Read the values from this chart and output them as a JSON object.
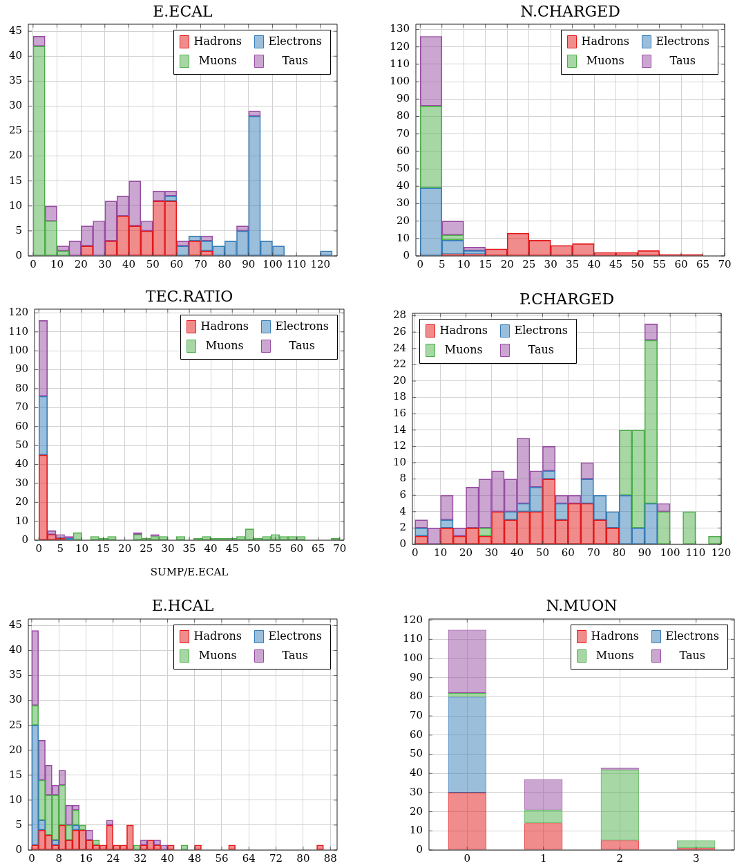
{
  "chart_data": [
    {
      "type": "bar",
      "title": "E.ECAL",
      "stacked": true,
      "grid": true,
      "legend": "top right",
      "x": [
        2.5,
        7.5,
        12.5,
        17.5,
        22.5,
        27.5,
        32.5,
        37.5,
        42.5,
        47.5,
        52.5,
        57.5,
        62.5,
        67.5,
        72.5,
        77.5,
        82.5,
        87.5,
        92.5,
        97.5,
        102.5,
        107.5,
        112.5,
        117.5,
        122.5
      ],
      "series": [
        {
          "name": "Hadrons",
          "color": "#e41a1c",
          "values": [
            null,
            null,
            null,
            null,
            2,
            null,
            3,
            8,
            6,
            5,
            11,
            11,
            null,
            3,
            1,
            null,
            null,
            null,
            null,
            null,
            null,
            null,
            null,
            null,
            null
          ]
        },
        {
          "name": "Electrons",
          "color": "#377eb8",
          "values": [
            null,
            null,
            null,
            null,
            null,
            null,
            null,
            null,
            null,
            null,
            null,
            1,
            2,
            1,
            2,
            2,
            3,
            5,
            28,
            3,
            2,
            null,
            null,
            null,
            1
          ]
        },
        {
          "name": "Muons",
          "color": "#4daf4a",
          "values": [
            42,
            7,
            1,
            null,
            null,
            null,
            null,
            null,
            null,
            null,
            null,
            null,
            null,
            null,
            null,
            null,
            null,
            null,
            null,
            null,
            null,
            null,
            null,
            null,
            null
          ]
        },
        {
          "name": "Taus",
          "color": "#984ea3",
          "values": [
            2,
            3,
            1,
            3,
            4,
            7,
            8,
            4,
            9,
            2,
            2,
            1,
            1,
            null,
            1,
            null,
            null,
            1,
            1,
            null,
            null,
            null,
            null,
            null,
            null
          ]
        }
      ],
      "xlim": [
        -2,
        127
      ],
      "xticks": [
        0,
        10,
        20,
        30,
        40,
        50,
        60,
        70,
        80,
        90,
        100,
        110,
        120
      ],
      "ylim": [
        0,
        46.4
      ],
      "yticks": [
        0,
        5,
        10,
        15,
        20,
        25,
        30,
        35,
        40,
        45
      ]
    },
    {
      "type": "bar",
      "title": "N.CHARGED",
      "stacked": true,
      "grid": true,
      "legend": "top right",
      "x": [
        2.5,
        7.5,
        12.5,
        17.5,
        22.5,
        27.5,
        32.5,
        37.5,
        42.5,
        47.5,
        52.5,
        57.5,
        62.5
      ],
      "series": [
        {
          "name": "Hadrons",
          "color": "#e41a1c",
          "values": [
            null,
            1,
            1,
            4,
            13,
            9,
            6,
            7,
            2,
            2,
            3,
            1,
            1
          ]
        },
        {
          "name": "Electrons",
          "color": "#377eb8",
          "values": [
            39,
            8,
            2,
            null,
            null,
            null,
            null,
            null,
            null,
            null,
            null,
            null,
            null
          ]
        },
        {
          "name": "Muons",
          "color": "#4daf4a",
          "values": [
            47,
            3,
            null,
            null,
            null,
            null,
            null,
            null,
            null,
            null,
            null,
            null,
            null
          ]
        },
        {
          "name": "Taus",
          "color": "#984ea3",
          "values": [
            40,
            8,
            2,
            null,
            null,
            null,
            null,
            null,
            null,
            null,
            null,
            null,
            null
          ]
        }
      ],
      "xlim": [
        -1,
        70
      ],
      "xticks": [
        0,
        5,
        10,
        15,
        20,
        25,
        30,
        35,
        40,
        45,
        50,
        55,
        60,
        65,
        70
      ],
      "ylim": [
        0,
        133
      ],
      "yticks": [
        0,
        10,
        20,
        30,
        40,
        50,
        60,
        70,
        80,
        90,
        100,
        110,
        120,
        130
      ]
    },
    {
      "type": "bar",
      "title": "TEC.RATIO",
      "xlabel": "SUMP/E.ECAL",
      "stacked": true,
      "grid": true,
      "legend": "top right",
      "x": [
        1,
        3,
        5,
        7,
        9,
        11,
        13,
        15,
        17,
        19,
        21,
        23,
        25,
        27,
        29,
        31,
        33,
        35,
        37,
        39,
        41,
        43,
        45,
        47,
        49,
        51,
        53,
        55,
        57,
        59,
        61,
        63,
        65,
        67,
        69
      ],
      "series": [
        {
          "name": "Hadrons",
          "color": "#e41a1c",
          "values": [
            45,
            3,
            1,
            null,
            null,
            null,
            null,
            null,
            null,
            null,
            null,
            null,
            null,
            null,
            null,
            null,
            null,
            null,
            null,
            null,
            null,
            null,
            null,
            null,
            null,
            null,
            null,
            null,
            null,
            null,
            null,
            null,
            null,
            null,
            null
          ]
        },
        {
          "name": "Electrons",
          "color": "#377eb8",
          "values": [
            31,
            null,
            null,
            1,
            null,
            null,
            null,
            null,
            null,
            null,
            null,
            null,
            null,
            null,
            null,
            null,
            null,
            null,
            null,
            null,
            null,
            null,
            null,
            null,
            null,
            null,
            null,
            null,
            null,
            null,
            null,
            null,
            null,
            null,
            null
          ]
        },
        {
          "name": "Muons",
          "color": "#4daf4a",
          "values": [
            null,
            null,
            null,
            null,
            4,
            null,
            2,
            1,
            2,
            null,
            null,
            3,
            1,
            2,
            2,
            null,
            2,
            null,
            1,
            2,
            1,
            1,
            1,
            2,
            6,
            1,
            2,
            3,
            2,
            2,
            2,
            null,
            null,
            null,
            1
          ]
        },
        {
          "name": "Taus",
          "color": "#984ea3",
          "values": [
            40,
            2,
            2,
            1,
            null,
            null,
            null,
            null,
            null,
            null,
            null,
            1,
            null,
            1,
            null,
            null,
            null,
            null,
            null,
            null,
            null,
            null,
            null,
            null,
            null,
            null,
            null,
            null,
            null,
            null,
            null,
            null,
            null,
            null,
            null
          ]
        }
      ],
      "xlim": [
        -1,
        71
      ],
      "xticks": [
        0,
        5,
        10,
        15,
        20,
        25,
        30,
        35,
        40,
        45,
        50,
        55,
        60,
        65,
        70
      ],
      "ylim": [
        0,
        122
      ],
      "yticks": [
        0,
        10,
        20,
        30,
        40,
        50,
        60,
        70,
        80,
        90,
        100,
        110,
        120
      ]
    },
    {
      "type": "bar",
      "title": "P.CHARGED",
      "stacked": true,
      "grid": true,
      "legend": "top left",
      "x": [
        2.5,
        7.5,
        12.5,
        17.5,
        22.5,
        27.5,
        32.5,
        37.5,
        42.5,
        47.5,
        52.5,
        57.5,
        62.5,
        67.5,
        72.5,
        77.5,
        82.5,
        87.5,
        92.5,
        97.5,
        102.5,
        107.5,
        112.5,
        117.5
      ],
      "series": [
        {
          "name": "Hadrons",
          "color": "#e41a1c",
          "values": [
            1,
            null,
            2,
            1,
            2,
            1,
            4,
            3,
            4,
            4,
            8,
            3,
            5,
            5,
            3,
            2,
            null,
            null,
            null,
            null,
            null,
            null,
            null,
            null
          ]
        },
        {
          "name": "Electrons",
          "color": "#377eb8",
          "values": [
            1,
            null,
            1,
            null,
            null,
            null,
            null,
            1,
            1,
            3,
            1,
            2,
            null,
            3,
            3,
            2,
            6,
            2,
            5,
            null,
            null,
            null,
            null,
            null
          ]
        },
        {
          "name": "Muons",
          "color": "#4daf4a",
          "values": [
            null,
            null,
            null,
            null,
            null,
            1,
            null,
            null,
            null,
            null,
            null,
            null,
            null,
            null,
            null,
            null,
            8,
            12,
            20,
            4,
            null,
            4,
            null,
            1
          ]
        },
        {
          "name": "Taus",
          "color": "#984ea3",
          "values": [
            1,
            2,
            3,
            1,
            5,
            6,
            5,
            4,
            8,
            2,
            3,
            1,
            1,
            2,
            null,
            null,
            null,
            null,
            2,
            1,
            null,
            null,
            null,
            null
          ]
        }
      ],
      "xlim": [
        -1,
        120
      ],
      "xticks": [
        0,
        10,
        20,
        30,
        40,
        50,
        60,
        70,
        80,
        90,
        100,
        110,
        120
      ],
      "ylim": [
        0,
        28.3
      ],
      "yticks": [
        0,
        2,
        4,
        6,
        8,
        10,
        12,
        14,
        16,
        18,
        20,
        22,
        24,
        26,
        28
      ]
    },
    {
      "type": "bar",
      "title": "E.HCAL",
      "stacked": true,
      "grid": true,
      "legend": "top right",
      "x": [
        1,
        3,
        5,
        7,
        9,
        11,
        13,
        15,
        17,
        19,
        21,
        23,
        25,
        27,
        29,
        31,
        33,
        35,
        37,
        39,
        41,
        43,
        45,
        47,
        49,
        51,
        53,
        55,
        57,
        59,
        61,
        63,
        65,
        67,
        69,
        71,
        73,
        75,
        77,
        79,
        81,
        83,
        85
      ],
      "series": [
        {
          "name": "Hadrons",
          "color": "#e41a1c",
          "values": [
            1,
            4,
            3,
            1,
            5,
            2,
            4,
            4,
            2,
            1,
            1,
            5,
            1,
            1,
            5,
            null,
            1,
            2,
            1,
            null,
            1,
            null,
            null,
            null,
            1,
            null,
            null,
            null,
            null,
            1,
            null,
            null,
            null,
            null,
            null,
            null,
            null,
            null,
            null,
            null,
            null,
            null,
            1
          ]
        },
        {
          "name": "Electrons",
          "color": "#377eb8",
          "values": [
            24,
            2,
            null,
            1,
            null,
            null,
            1,
            null,
            null,
            null,
            null,
            null,
            null,
            null,
            null,
            null,
            null,
            null,
            null,
            null,
            null,
            null,
            null,
            null,
            null,
            null,
            null,
            null,
            null,
            null,
            null,
            null,
            null,
            null,
            null,
            null,
            null,
            null,
            null,
            null,
            null,
            null,
            null
          ]
        },
        {
          "name": "Muons",
          "color": "#4daf4a",
          "values": [
            4,
            8,
            8,
            9,
            8,
            3,
            3,
            1,
            null,
            1,
            null,
            null,
            null,
            null,
            null,
            1,
            null,
            null,
            null,
            null,
            null,
            null,
            1,
            null,
            null,
            null,
            null,
            null,
            null,
            null,
            null,
            null,
            null,
            null,
            null,
            null,
            null,
            null,
            null,
            null,
            null,
            null,
            null
          ]
        },
        {
          "name": "Taus",
          "color": "#984ea3",
          "values": [
            15,
            8,
            6,
            2,
            3,
            4,
            1,
            null,
            2,
            null,
            null,
            1,
            null,
            null,
            null,
            null,
            1,
            null,
            1,
            1,
            null,
            null,
            null,
            null,
            null,
            null,
            null,
            null,
            null,
            null,
            null,
            null,
            null,
            null,
            null,
            null,
            null,
            null,
            null,
            null,
            null,
            null,
            null
          ]
        }
      ],
      "xlim": [
        -1,
        90
      ],
      "xticks": [
        0,
        8,
        16,
        24,
        32,
        40,
        48,
        56,
        64,
        72,
        80,
        88
      ],
      "ylim": [
        0,
        46.3
      ],
      "yticks": [
        0,
        5,
        10,
        15,
        20,
        25,
        30,
        35,
        40,
        45
      ]
    },
    {
      "type": "bar",
      "title": "N.MUON",
      "stacked": true,
      "grid": true,
      "legend": "top right",
      "categories": [
        "0",
        "1",
        "2",
        "3"
      ],
      "series": [
        {
          "name": "Hadrons",
          "color": "#e41a1c",
          "values": [
            30,
            14,
            5,
            1
          ]
        },
        {
          "name": "Electrons",
          "color": "#377eb8",
          "values": [
            50,
            null,
            null,
            null
          ]
        },
        {
          "name": "Muons",
          "color": "#4daf4a",
          "values": [
            2,
            7,
            37,
            4
          ]
        },
        {
          "name": "Taus",
          "color": "#984ea3",
          "values": [
            33,
            16,
            1,
            null
          ]
        }
      ],
      "ylim": [
        0,
        120.6
      ],
      "yticks": [
        0,
        10,
        20,
        30,
        40,
        50,
        60,
        70,
        80,
        90,
        100,
        110,
        120
      ]
    }
  ]
}
